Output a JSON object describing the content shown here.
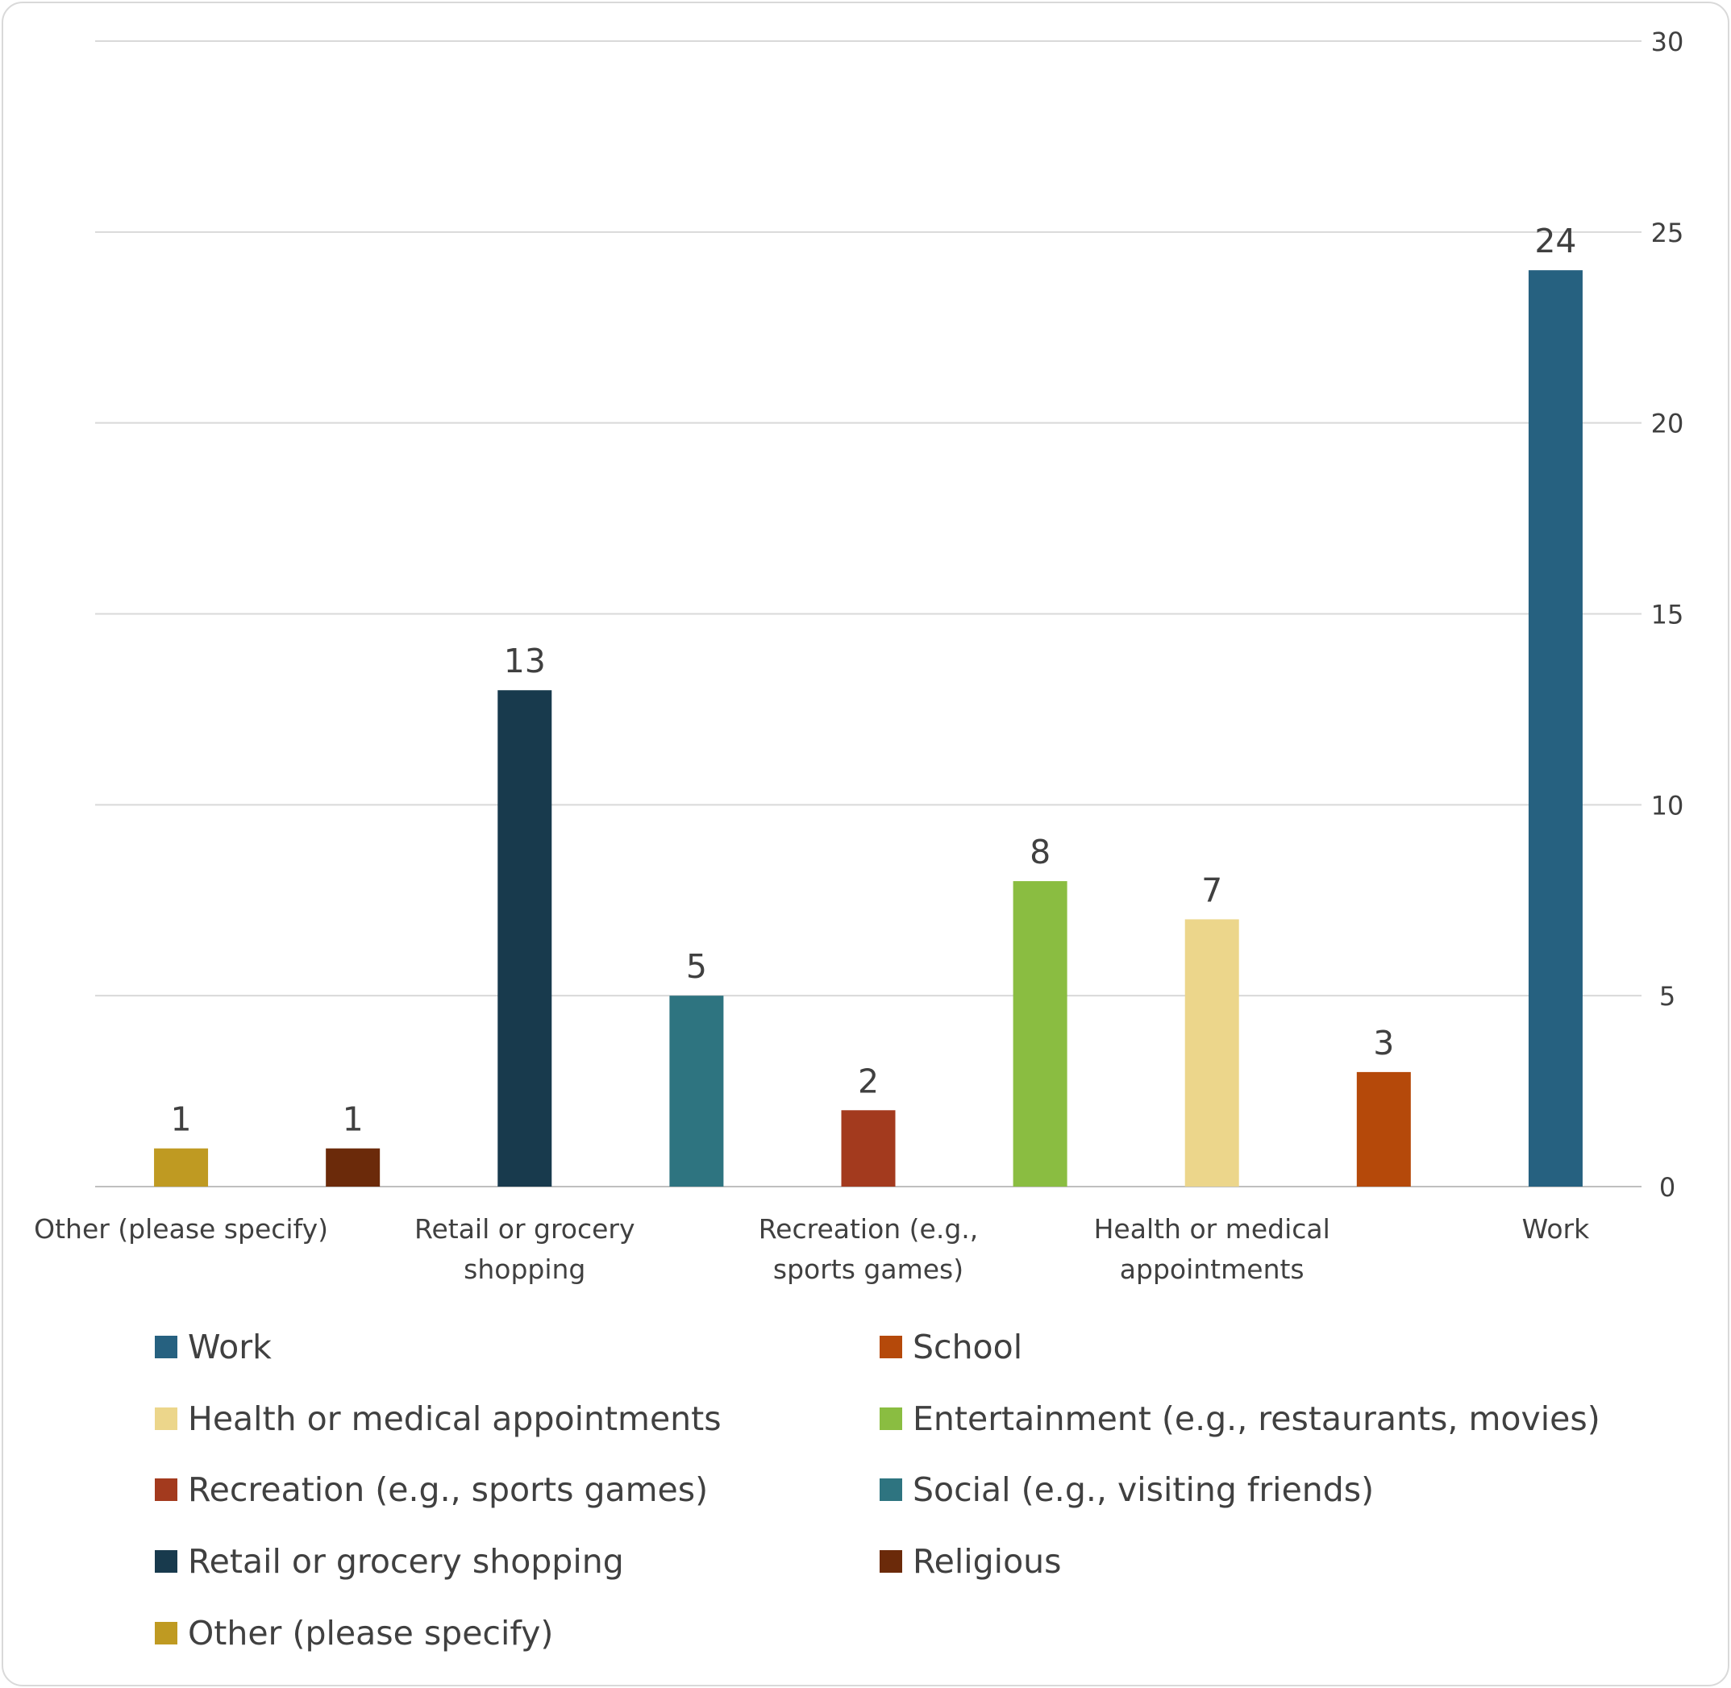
{
  "chart_data": {
    "type": "bar",
    "title": "",
    "xlabel": "",
    "ylabel": "",
    "ylim": [
      0,
      30
    ],
    "yticks": [
      0,
      5,
      10,
      15,
      20,
      25,
      30
    ],
    "y_axis_side": "right",
    "grid": true,
    "legend_position": "bottom",
    "categories": [
      "Other (please specify)",
      "Religious",
      "Retail or grocery shopping",
      "Social (e.g., visiting friends)",
      "Recreation (e.g., sports games)",
      "Entertainment (e.g., restaurants, movies)",
      "Health or medical appointments",
      "School",
      "Work"
    ],
    "x_tick_labels_shown": [
      "Other (please specify)",
      "Retail or grocery shopping",
      "Recreation (e.g., sports games)",
      "Health or medical appointments",
      "Work"
    ],
    "values": [
      1,
      1,
      13,
      5,
      2,
      8,
      7,
      3,
      24
    ],
    "colors": [
      "#bf9a22",
      "#6b2a0a",
      "#183a4d",
      "#2e7480",
      "#a33a1e",
      "#8abd41",
      "#ecd68b",
      "#b5490a",
      "#266180"
    ],
    "legend": [
      {
        "label": "Work",
        "color": "#266180"
      },
      {
        "label": "School",
        "color": "#b5490a"
      },
      {
        "label": "Health or medical appointments",
        "color": "#ecd68b"
      },
      {
        "label": "Entertainment (e.g., restaurants, movies)",
        "color": "#8abd41"
      },
      {
        "label": "Recreation (e.g., sports games)",
        "color": "#a33a1e"
      },
      {
        "label": "Social (e.g., visiting friends)",
        "color": "#2e7480"
      },
      {
        "label": "Retail or grocery shopping",
        "color": "#183a4d"
      },
      {
        "label": "Religious",
        "color": "#6b2a0a"
      },
      {
        "label": "Other (please specify)",
        "color": "#bf9a22"
      }
    ]
  }
}
